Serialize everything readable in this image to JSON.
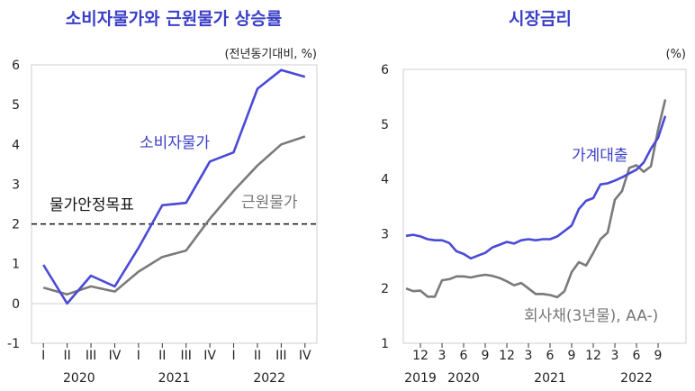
{
  "chart_data": [
    {
      "type": "line",
      "title": "소비자물가와 근원물가 상승률",
      "unit_note": "(전년동기대비, %)",
      "categories": [
        "I",
        "II",
        "III",
        "IV",
        "I",
        "II",
        "III",
        "IV",
        "I",
        "II",
        "III",
        "IV"
      ],
      "year_labels": [
        "2020",
        "2021",
        "2022"
      ],
      "ylim": [
        -1,
        6
      ],
      "yticks": [
        -1,
        0,
        1,
        2,
        3,
        4,
        5,
        6
      ],
      "series": [
        {
          "name": "소비자물가",
          "color": "#4a4ad6",
          "values": [
            0.97,
            0.0,
            0.7,
            0.43,
            1.4,
            2.47,
            2.53,
            3.57,
            3.8,
            5.4,
            5.87,
            5.7
          ]
        },
        {
          "name": "근원물가",
          "color": "#7a7a7a",
          "values": [
            0.4,
            0.23,
            0.43,
            0.3,
            0.8,
            1.17,
            1.33,
            2.13,
            2.83,
            3.47,
            4.0,
            4.2
          ]
        }
      ],
      "reference_line": {
        "name": "물가안정목표",
        "value": 2.0
      }
    },
    {
      "type": "line",
      "title": "시장금리",
      "unit_note": "(%)",
      "x_tick_labels": [
        "12",
        "3",
        "6",
        "9",
        "12",
        "3",
        "6",
        "9",
        "12",
        "3",
        "6",
        "9"
      ],
      "year_labels": [
        "2019",
        "2020",
        "2021",
        "2022"
      ],
      "ylim": [
        1,
        6
      ],
      "yticks": [
        1,
        2,
        3,
        4,
        5,
        6
      ],
      "series": [
        {
          "name": "가계대출",
          "color": "#4a4ad6",
          "values": [
            2.96,
            2.98,
            2.95,
            2.9,
            2.88,
            2.88,
            2.83,
            2.68,
            2.63,
            2.55,
            2.6,
            2.65,
            2.75,
            2.8,
            2.85,
            2.82,
            2.88,
            2.9,
            2.88,
            2.9,
            2.9,
            2.95,
            3.05,
            3.15,
            3.45,
            3.6,
            3.65,
            3.9,
            3.92,
            3.97,
            4.03,
            4.1,
            4.17,
            4.3,
            4.55,
            4.75,
            5.15
          ]
        },
        {
          "name": "회사채(3년물), AA-)",
          "color": "#7a7a7a",
          "values": [
            2.0,
            1.95,
            1.96,
            1.85,
            1.85,
            2.15,
            2.17,
            2.22,
            2.22,
            2.2,
            2.23,
            2.25,
            2.23,
            2.19,
            2.13,
            2.06,
            2.1,
            2.0,
            1.9,
            1.9,
            1.88,
            1.84,
            1.95,
            2.3,
            2.48,
            2.42,
            2.65,
            2.9,
            3.02,
            3.62,
            3.78,
            4.2,
            4.25,
            4.13,
            4.23,
            4.9,
            5.45
          ]
        }
      ]
    }
  ]
}
